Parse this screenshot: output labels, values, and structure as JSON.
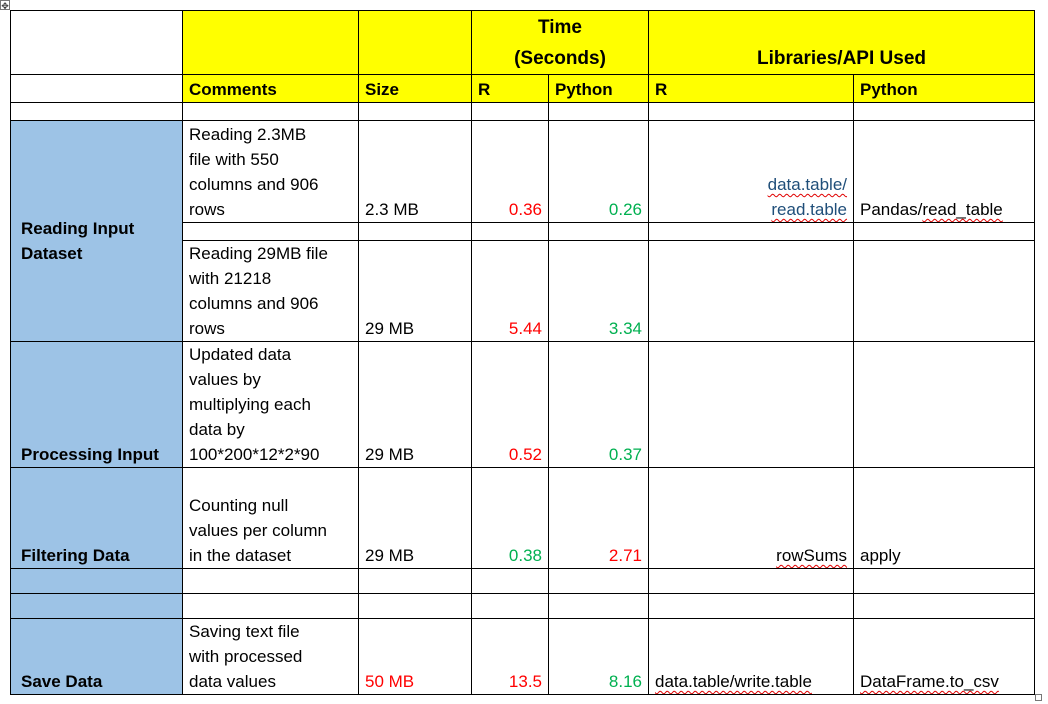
{
  "header": {
    "time_line1": "Time",
    "time_line2": "(Seconds)",
    "libraries": "Libraries/API Used",
    "comments": "Comments",
    "size": "Size",
    "r": "R",
    "python": "Python",
    "lib_r": "R",
    "lib_python": "Python"
  },
  "sections": {
    "reading": {
      "label_line1": "Reading Input",
      "label_line2": "Dataset",
      "rows": [
        {
          "comment": [
            "Reading 2.3MB",
            "file with 550",
            "columns and 906",
            "rows"
          ],
          "size": "2.3 MB",
          "r_time": "0.36",
          "py_time": "0.26",
          "lib_r": [
            "data.table/",
            "read.table"
          ],
          "lib_py": [
            "Pandas/",
            "read_table"
          ]
        },
        {
          "comment": [
            "Reading 29MB file",
            "with 21218",
            "columns and 906",
            "rows"
          ],
          "size": "29 MB",
          "r_time": "5.44",
          "py_time": "3.34"
        }
      ]
    },
    "processing": {
      "label": "Processing Input",
      "comment": [
        "Updated data",
        "values by",
        "multiplying each",
        "data by",
        "100*200*12*2*90"
      ],
      "size": "29 MB",
      "r_time": "0.52",
      "py_time": "0.37"
    },
    "filtering": {
      "label": "Filtering Data",
      "comment": [
        "Counting null",
        "values per column",
        "in the dataset"
      ],
      "size": "29 MB",
      "r_time": "0.38",
      "py_time": "2.71",
      "lib_r": "rowSums",
      "lib_py": "apply"
    },
    "save": {
      "label": "Save Data",
      "comment": [
        "Saving text file",
        "with processed",
        "data values"
      ],
      "size": "50 MB",
      "r_time": "13.5",
      "py_time": "8.16",
      "lib_r": "data.table/write.table",
      "lib_py": "DataFrame.to_csv"
    }
  },
  "colors": {
    "header_fill": "#ffff00",
    "category_fill": "#9dc3e6",
    "slower": "#ff0000",
    "faster": "#00b050"
  },
  "icons": {
    "table_move_handle": "move-icon",
    "table_resize_handle": "resize-icon"
  }
}
